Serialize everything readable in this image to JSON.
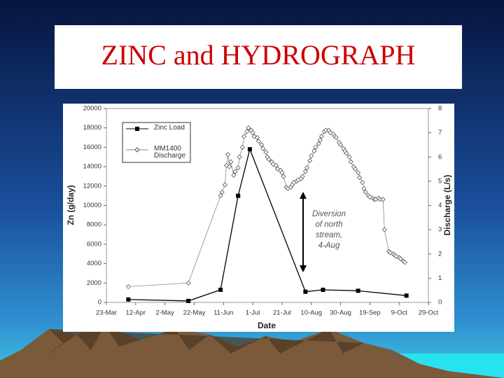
{
  "chart_data": {
    "type": "line",
    "title": "ZINC and HYDROGRAPH",
    "xlabel": "Date",
    "ylabel": "Zn (g/day)",
    "y2label": "Discharge (L/s)",
    "annotation": [
      "Diversion",
      "of north",
      "stream,",
      "4-Aug"
    ],
    "xlim": [
      0,
      220
    ],
    "xticks": [
      {
        "value": 0,
        "label": "23-Mar"
      },
      {
        "value": 20,
        "label": "12-Apr"
      },
      {
        "value": 40,
        "label": "2-May"
      },
      {
        "value": 60,
        "label": "22-May"
      },
      {
        "value": 80,
        "label": "11-Jun"
      },
      {
        "value": 100,
        "label": "1-Jul"
      },
      {
        "value": 120,
        "label": "21-Jul"
      },
      {
        "value": 140,
        "label": "10-Aug"
      },
      {
        "value": 160,
        "label": "30-Aug"
      },
      {
        "value": 180,
        "label": "19-Sep"
      },
      {
        "value": 200,
        "label": "9-Oct"
      },
      {
        "value": 220,
        "label": "29-Oct"
      }
    ],
    "ylim": [
      0,
      20000
    ],
    "yticks": [
      0,
      2000,
      4000,
      6000,
      8000,
      10000,
      12000,
      14000,
      16000,
      18000,
      20000
    ],
    "y2lim": [
      0,
      8
    ],
    "y2ticks": [
      0,
      1,
      2,
      3,
      4,
      5,
      6,
      7,
      8
    ],
    "series": [
      {
        "name": "Zinc Load",
        "color": "#000000",
        "marker": "square",
        "axis": "y",
        "x": [
          15,
          56,
          78,
          90,
          98,
          136,
          148,
          172,
          205
        ],
        "values": [
          300,
          150,
          1300,
          11000,
          15800,
          1100,
          1300,
          1200,
          700
        ]
      },
      {
        "name": "MM1400 Discharge",
        "color": "#888888",
        "marker": "diamond",
        "axis": "y2",
        "x": [
          15,
          56,
          78,
          79,
          81,
          82,
          83,
          84,
          85,
          87,
          88,
          90,
          91,
          93,
          94,
          96,
          97,
          99,
          100,
          101,
          103,
          104,
          106,
          107,
          109,
          110,
          111,
          113,
          114,
          116,
          117,
          119,
          120,
          121,
          123,
          124,
          126,
          127,
          128,
          130,
          131,
          133,
          134,
          136,
          137,
          139,
          140,
          142,
          143,
          145,
          146,
          147,
          149,
          150,
          152,
          153,
          155,
          156,
          157,
          159,
          160,
          162,
          163,
          164,
          166,
          167,
          169,
          170,
          172,
          173,
          175,
          176,
          177,
          179,
          180,
          182,
          183,
          184,
          186,
          187,
          189,
          190,
          193,
          194,
          196,
          197,
          198,
          200,
          201,
          203,
          204
        ],
        "values": [
          0.65,
          0.8,
          4.4,
          4.55,
          4.85,
          5.65,
          6.1,
          5.6,
          5.8,
          5.25,
          5.4,
          5.55,
          6.0,
          6.4,
          6.85,
          7.05,
          7.2,
          7.1,
          7.0,
          6.85,
          6.8,
          6.65,
          6.5,
          6.35,
          6.2,
          6.0,
          5.9,
          5.8,
          5.7,
          5.65,
          5.5,
          5.45,
          5.35,
          5.2,
          4.75,
          4.7,
          4.75,
          4.85,
          4.95,
          5.0,
          5.05,
          5.1,
          5.2,
          5.4,
          5.55,
          5.85,
          6.05,
          6.25,
          6.4,
          6.55,
          6.7,
          6.85,
          7.05,
          7.1,
          7.1,
          7.0,
          6.95,
          6.85,
          6.8,
          6.6,
          6.5,
          6.35,
          6.25,
          6.15,
          6.0,
          5.8,
          5.6,
          5.5,
          5.35,
          5.15,
          4.95,
          4.7,
          4.55,
          4.4,
          4.35,
          4.3,
          4.25,
          4.25,
          4.3,
          4.25,
          4.25,
          3.0,
          2.1,
          2.05,
          2.0,
          1.95,
          1.9,
          1.85,
          1.8,
          1.7,
          1.65
        ]
      }
    ]
  }
}
